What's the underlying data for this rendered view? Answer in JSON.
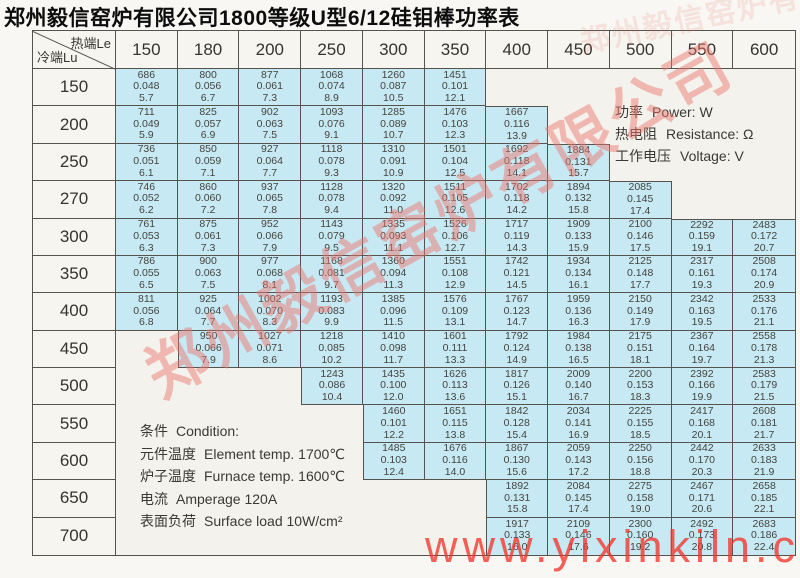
{
  "title": "郑州毅信窑炉有限公司1800等级U型6/12硅钼棒功率表",
  "colors": {
    "cell_fill": "#c7e9f3",
    "header_fill": "#f6f5f0",
    "grid_border": "#55534e",
    "watermark_red": "#ec766c",
    "url_red": "#f3342a"
  },
  "table": {
    "corner": {
      "top": "热端Le",
      "bottom": "冷端Lu"
    },
    "col_headers": [
      "150",
      "180",
      "200",
      "250",
      "300",
      "350",
      "400",
      "450",
      "500",
      "550",
      "600"
    ],
    "cell_value_names": [
      "power-w",
      "resistance-ohm",
      "voltage-v"
    ],
    "rows": [
      {
        "label": "150",
        "start": 0,
        "cells": [
          [
            "686",
            "0.048",
            "5.7"
          ],
          [
            "800",
            "0.056",
            "6.7"
          ],
          [
            "877",
            "0.061",
            "7.3"
          ],
          [
            "1068",
            "0.074",
            "8.9"
          ],
          [
            "1260",
            "0.087",
            "10.5"
          ],
          [
            "1451",
            "0.101",
            "12.1"
          ]
        ]
      },
      {
        "label": "200",
        "start": 0,
        "cells": [
          [
            "711",
            "0.049",
            "5.9"
          ],
          [
            "825",
            "0.057",
            "6.9"
          ],
          [
            "902",
            "0.063",
            "7.5"
          ],
          [
            "1093",
            "0.076",
            "9.1"
          ],
          [
            "1285",
            "0.089",
            "10.7"
          ],
          [
            "1476",
            "0.103",
            "12.3"
          ],
          [
            "1667",
            "0.116",
            "13.9"
          ]
        ]
      },
      {
        "label": "250",
        "start": 0,
        "cells": [
          [
            "736",
            "0.051",
            "6.1"
          ],
          [
            "850",
            "0.059",
            "7.1"
          ],
          [
            "927",
            "0.064",
            "7.7"
          ],
          [
            "1118",
            "0.078",
            "9.3"
          ],
          [
            "1310",
            "0.091",
            "10.9"
          ],
          [
            "1501",
            "0.104",
            "12.5"
          ],
          [
            "1692",
            "0.118",
            "14.1"
          ],
          [
            "1884",
            "0.131",
            "15.7"
          ]
        ]
      },
      {
        "label": "270",
        "start": 0,
        "cells": [
          [
            "746",
            "0.052",
            "6.2"
          ],
          [
            "860",
            "0.060",
            "7.2"
          ],
          [
            "937",
            "0.065",
            "7.8"
          ],
          [
            "1128",
            "0.078",
            "9.4"
          ],
          [
            "1320",
            "0.092",
            "11.0"
          ],
          [
            "1511",
            "0.105",
            "12.6"
          ],
          [
            "1702",
            "0.118",
            "14.2"
          ],
          [
            "1894",
            "0.132",
            "15.8"
          ],
          [
            "2085",
            "0.145",
            "17.4"
          ]
        ]
      },
      {
        "label": "300",
        "start": 0,
        "cells": [
          [
            "761",
            "0.053",
            "6.3"
          ],
          [
            "875",
            "0.061",
            "7.3"
          ],
          [
            "952",
            "0.066",
            "7.9"
          ],
          [
            "1143",
            "0.079",
            "9.5"
          ],
          [
            "1335",
            "0.093",
            "11.1"
          ],
          [
            "1526",
            "0.106",
            "12.7"
          ],
          [
            "1717",
            "0.119",
            "14.3"
          ],
          [
            "1909",
            "0.133",
            "15.9"
          ],
          [
            "2100",
            "0.146",
            "17.5"
          ],
          [
            "2292",
            "0.159",
            "19.1"
          ],
          [
            "2483",
            "0.172",
            "20.7"
          ]
        ]
      },
      {
        "label": "350",
        "start": 0,
        "cells": [
          [
            "786",
            "0.055",
            "6.5"
          ],
          [
            "900",
            "0.063",
            "7.5"
          ],
          [
            "977",
            "0.068",
            "8.1"
          ],
          [
            "1168",
            "0.081",
            "9.7"
          ],
          [
            "1360",
            "0.094",
            "11.3"
          ],
          [
            "1551",
            "0.108",
            "12.9"
          ],
          [
            "1742",
            "0.121",
            "14.5"
          ],
          [
            "1934",
            "0.134",
            "16.1"
          ],
          [
            "2125",
            "0.148",
            "17.7"
          ],
          [
            "2317",
            "0.161",
            "19.3"
          ],
          [
            "2508",
            "0.174",
            "20.9"
          ]
        ]
      },
      {
        "label": "400",
        "start": 0,
        "cells": [
          [
            "811",
            "0.056",
            "6.8"
          ],
          [
            "925",
            "0.064",
            "7.7"
          ],
          [
            "1002",
            "0.070",
            "8.3"
          ],
          [
            "1193",
            "0.083",
            "9.9"
          ],
          [
            "1385",
            "0.096",
            "11.5"
          ],
          [
            "1576",
            "0.109",
            "13.1"
          ],
          [
            "1767",
            "0.123",
            "14.7"
          ],
          [
            "1959",
            "0.136",
            "16.3"
          ],
          [
            "2150",
            "0.149",
            "17.9"
          ],
          [
            "2342",
            "0.163",
            "19.5"
          ],
          [
            "2533",
            "0.176",
            "21.1"
          ]
        ]
      },
      {
        "label": "450",
        "start": 1,
        "cells": [
          [
            "950",
            "0.066",
            "7.9"
          ],
          [
            "1027",
            "0.071",
            "8.6"
          ],
          [
            "1218",
            "0.085",
            "10.2"
          ],
          [
            "1410",
            "0.098",
            "11.7"
          ],
          [
            "1601",
            "0.111",
            "13.3"
          ],
          [
            "1792",
            "0.124",
            "14.9"
          ],
          [
            "1984",
            "0.138",
            "16.5"
          ],
          [
            "2175",
            "0.151",
            "18.1"
          ],
          [
            "2367",
            "0.164",
            "19.7"
          ],
          [
            "2558",
            "0.178",
            "21.3"
          ]
        ]
      },
      {
        "label": "500",
        "start": 3,
        "cells": [
          [
            "1243",
            "0.086",
            "10.4"
          ],
          [
            "1435",
            "0.100",
            "12.0"
          ],
          [
            "1626",
            "0.113",
            "13.6"
          ],
          [
            "1817",
            "0.126",
            "15.1"
          ],
          [
            "2009",
            "0.140",
            "16.7"
          ],
          [
            "2200",
            "0.153",
            "18.3"
          ],
          [
            "2392",
            "0.166",
            "19.9"
          ],
          [
            "2583",
            "0.179",
            "21.5"
          ]
        ]
      },
      {
        "label": "550",
        "start": 4,
        "cells": [
          [
            "1460",
            "0.101",
            "12.2"
          ],
          [
            "1651",
            "0.115",
            "13.8"
          ],
          [
            "1842",
            "0.128",
            "15.4"
          ],
          [
            "2034",
            "0.141",
            "16.9"
          ],
          [
            "2225",
            "0.155",
            "18.5"
          ],
          [
            "2417",
            "0.168",
            "20.1"
          ],
          [
            "2608",
            "0.181",
            "21.7"
          ]
        ]
      },
      {
        "label": "600",
        "start": 4,
        "cells": [
          [
            "1485",
            "0.103",
            "12.4"
          ],
          [
            "1676",
            "0.116",
            "14.0"
          ],
          [
            "1867",
            "0.130",
            "15.6"
          ],
          [
            "2059",
            "0.143",
            "17.2"
          ],
          [
            "2250",
            "0.156",
            "18.8"
          ],
          [
            "2442",
            "0.170",
            "20.3"
          ],
          [
            "2633",
            "0.183",
            "21.9"
          ]
        ]
      },
      {
        "label": "650",
        "start": 6,
        "cells": [
          [
            "1892",
            "0.131",
            "15.8"
          ],
          [
            "2084",
            "0.145",
            "17.4"
          ],
          [
            "2275",
            "0.158",
            "19.0"
          ],
          [
            "2467",
            "0.171",
            "20.6"
          ],
          [
            "2658",
            "0.185",
            "22.1"
          ]
        ]
      },
      {
        "label": "700",
        "start": 6,
        "cells": [
          [
            "1917",
            "0.133",
            "16.0"
          ],
          [
            "2109",
            "0.146",
            "17.6"
          ],
          [
            "2300",
            "0.160",
            "19.2"
          ],
          [
            "2492",
            "0.173",
            "20.8"
          ],
          [
            "2683",
            "0.186",
            "22.4"
          ]
        ]
      }
    ]
  },
  "legend": {
    "items": [
      {
        "zh": "功率",
        "en": "Power: W"
      },
      {
        "zh": "热电阻",
        "en": "Resistance: Ω"
      },
      {
        "zh": "工作电压",
        "en": "Voltage: V"
      }
    ]
  },
  "conditions": {
    "heading": {
      "zh": "条件",
      "en": "Condition:"
    },
    "items": [
      {
        "zh": "元件温度",
        "en": "Element temp. 1700℃"
      },
      {
        "zh": "炉子温度",
        "en": "Furnace temp. 1600℃"
      },
      {
        "zh": "电流",
        "en": "Amperage 120A"
      },
      {
        "zh": "表面负荷",
        "en": "Surface load 10W/cm²"
      }
    ]
  },
  "watermark": {
    "company": "郑州毅信窑炉有限公司",
    "url": "www.yixinkiln.com"
  }
}
